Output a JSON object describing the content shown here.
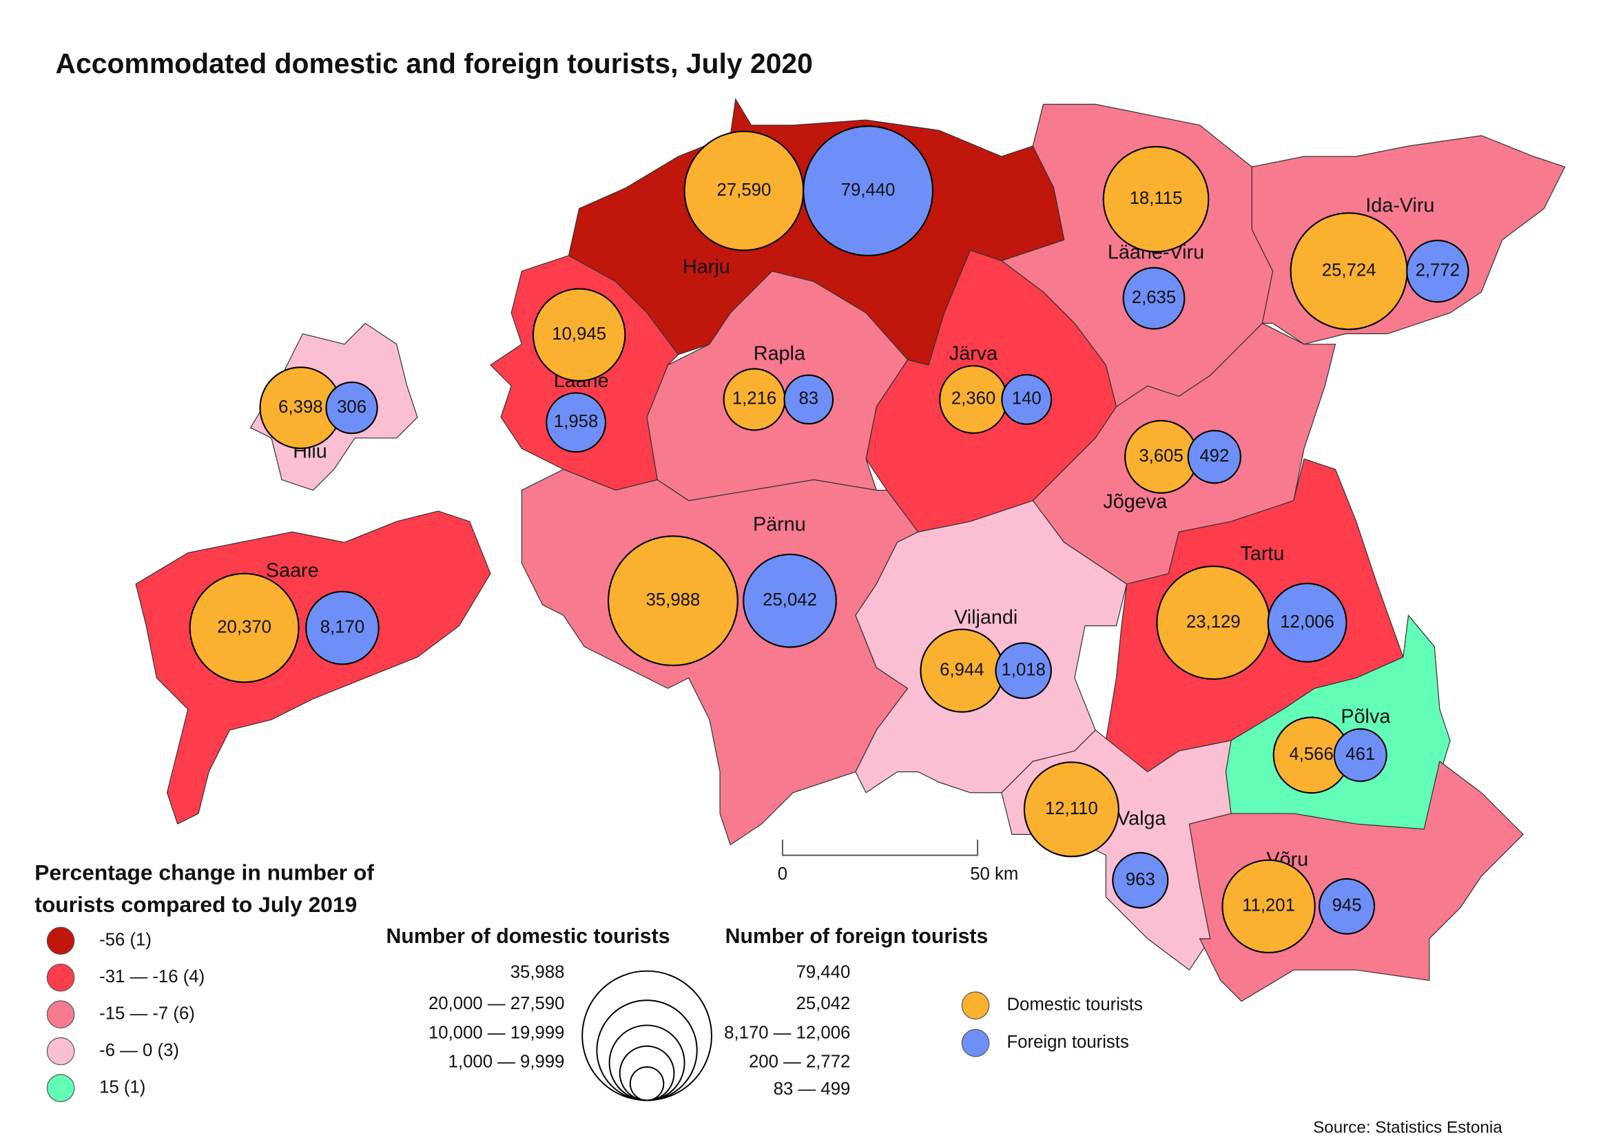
{
  "title": "Accommodated domestic and foreign tourists, July 2020",
  "regions": [
    {
      "name": "Harju",
      "color": "#c0160c",
      "domestic": {
        "value": 27590,
        "label": "27,590"
      },
      "foreign": {
        "value": 79440,
        "label": "79,440"
      }
    },
    {
      "name": "Lääne-Viru",
      "color": "#f77a8f",
      "domestic": {
        "value": 18115,
        "label": "18,115"
      },
      "foreign": {
        "value": 2635,
        "label": "2,635"
      }
    },
    {
      "name": "Ida-Viru",
      "color": "#f77a8f",
      "domestic": {
        "value": 25724,
        "label": "25,724"
      },
      "foreign": {
        "value": 2772,
        "label": "2,772"
      }
    },
    {
      "name": "Järva",
      "color": "#fd3d4c",
      "domestic": {
        "value": 2360,
        "label": "2,360"
      },
      "foreign": {
        "value": 140,
        "label": "140"
      }
    },
    {
      "name": "Rapla",
      "color": "#f77a8f",
      "domestic": {
        "value": 1216,
        "label": "1,216"
      },
      "foreign": {
        "value": 83,
        "label": "83"
      }
    },
    {
      "name": "Lääne",
      "color": "#fd3d4c",
      "domestic": {
        "value": 10945,
        "label": "10,945"
      },
      "foreign": {
        "value": 1958,
        "label": "1,958"
      }
    },
    {
      "name": "Jõgeva",
      "color": "#f77a8f",
      "domestic": {
        "value": 3605,
        "label": "3,605"
      },
      "foreign": {
        "value": 492,
        "label": "492"
      }
    },
    {
      "name": "Pärnu",
      "color": "#f77a8f",
      "domestic": {
        "value": 35988,
        "label": "35,988"
      },
      "foreign": {
        "value": 25042,
        "label": "25,042"
      }
    },
    {
      "name": "Viljandi",
      "color": "#fbbfd3",
      "domestic": {
        "value": 6944,
        "label": "6,944"
      },
      "foreign": {
        "value": 1018,
        "label": "1,018"
      }
    },
    {
      "name": "Tartu",
      "color": "#fd3d4c",
      "domestic": {
        "value": 23129,
        "label": "23,129"
      },
      "foreign": {
        "value": 12006,
        "label": "12,006"
      }
    },
    {
      "name": "Põlva",
      "color": "#62fdb6",
      "domestic": {
        "value": 4566,
        "label": "4,566"
      },
      "foreign": {
        "value": 461,
        "label": "461"
      }
    },
    {
      "name": "Valga",
      "color": "#fbbfd3",
      "domestic": {
        "value": 12110,
        "label": "12,110"
      },
      "foreign": {
        "value": 963,
        "label": "963"
      }
    },
    {
      "name": "Võru",
      "color": "#f77a8f",
      "domestic": {
        "value": 11201,
        "label": "11,201"
      },
      "foreign": {
        "value": 945,
        "label": "945"
      }
    },
    {
      "name": "Hiiu",
      "color": "#fbbfd3",
      "domestic": {
        "value": 6398,
        "label": "6,398"
      },
      "foreign": {
        "value": 306,
        "label": "306"
      }
    },
    {
      "name": "Saare",
      "color": "#fd3d4c",
      "domestic": {
        "value": 20370,
        "label": "20,370"
      },
      "foreign": {
        "value": 8170,
        "label": "8,170"
      }
    }
  ],
  "change_legend": {
    "title_lines": [
      "Percentage change in number of",
      "tourists compared to July 2019"
    ],
    "items": [
      {
        "label": "-56 (1)",
        "color": "#c0160c"
      },
      {
        "label": "-31 — -16 (4)",
        "color": "#fd3d4c"
      },
      {
        "label": "-15 —   -7 (6)",
        "color": "#f77a8f"
      },
      {
        "label": "-6 —    0 (3)",
        "color": "#fbbfd3"
      },
      {
        "label": "15 (1)",
        "color": "#62fdb6"
      }
    ]
  },
  "size_legend": {
    "domestic_title": "Number of domestic tourists",
    "domestic_labels": [
      "35,988",
      "20,000 — 27,590",
      "10,000 — 19,999",
      "1,000 —   9,999"
    ],
    "foreign_title": "Number of foreign tourists",
    "foreign_labels": [
      "79,440",
      "25,042",
      "8,170 — 12,006",
      "200 —  2,772",
      "83 —     499"
    ]
  },
  "marker_legend": [
    {
      "label": "Domestic tourists",
      "color": "#fbb130"
    },
    {
      "label": "Foreign tourists",
      "color": "#6f8ff8"
    }
  ],
  "scale_bar": {
    "labels": [
      "0",
      "50 km"
    ]
  },
  "source": "Source: Statistics Estonia"
}
